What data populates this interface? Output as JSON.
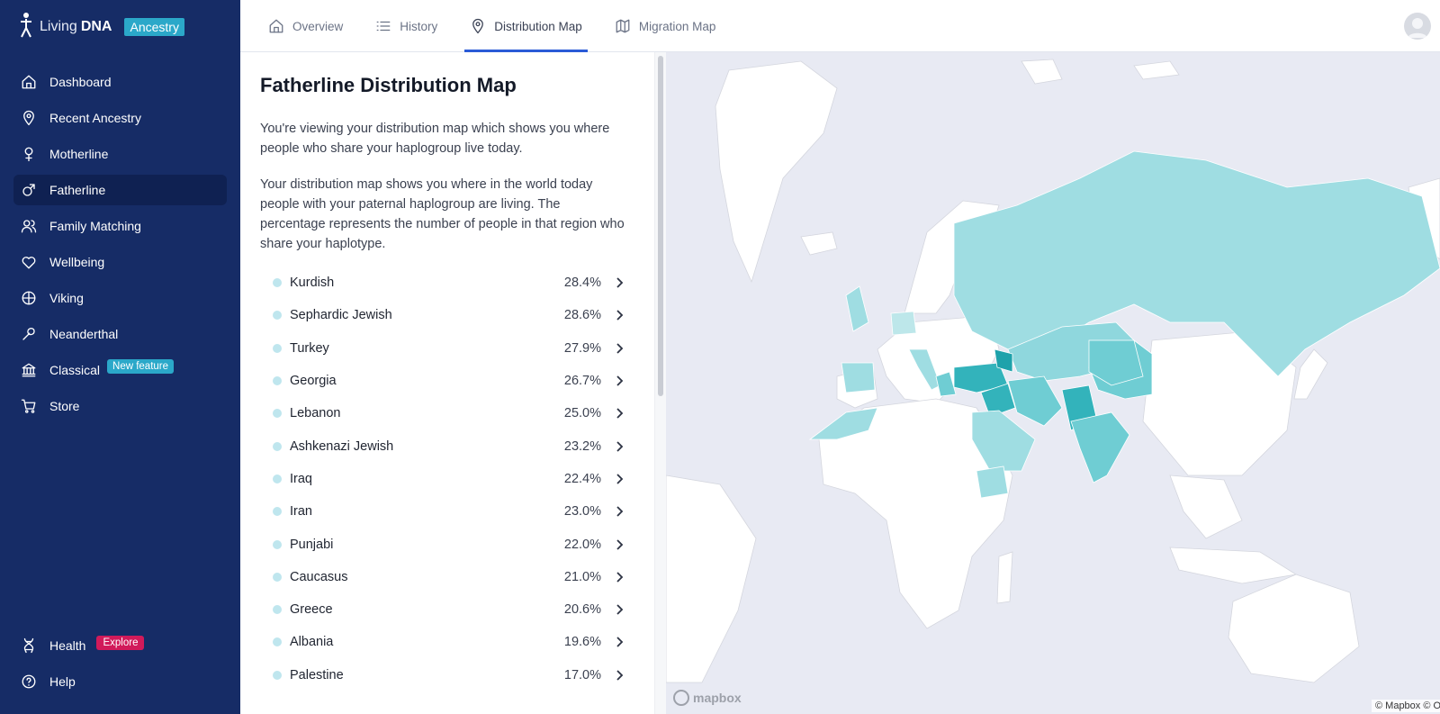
{
  "brand": {
    "name_light": "Living",
    "name_bold": "DNA",
    "product": "Ancestry"
  },
  "sidebar": {
    "items": [
      {
        "label": "Dashboard",
        "icon": "home-icon"
      },
      {
        "label": "Recent Ancestry",
        "icon": "location-pin-icon"
      },
      {
        "label": "Motherline",
        "icon": "female-symbol-icon"
      },
      {
        "label": "Fatherline",
        "icon": "male-symbol-icon",
        "active": true
      },
      {
        "label": "Family Matching",
        "icon": "people-icon"
      },
      {
        "label": "Wellbeing",
        "icon": "heart-icon"
      },
      {
        "label": "Viking",
        "icon": "viking-shield-icon"
      },
      {
        "label": "Neanderthal",
        "icon": "club-icon"
      },
      {
        "label": "Classical",
        "icon": "temple-icon",
        "badge": "New feature"
      },
      {
        "label": "Store",
        "icon": "cart-icon"
      }
    ],
    "bottom": [
      {
        "label": "Health",
        "icon": "dna-icon",
        "badge": "Explore"
      },
      {
        "label": "Help",
        "icon": "help-circle-icon"
      }
    ]
  },
  "tabs": [
    {
      "label": "Overview",
      "icon": "home-icon"
    },
    {
      "label": "History",
      "icon": "list-icon"
    },
    {
      "label": "Distribution Map",
      "icon": "location-pin-icon",
      "active": true
    },
    {
      "label": "Migration Map",
      "icon": "map-icon"
    }
  ],
  "panel": {
    "title": "Fatherline Distribution Map",
    "p1": "You're viewing your distribution map which shows you where people who share your haplogroup live today.",
    "p2": "Your distribution map shows you where in the world today people with your paternal haplogroup are living. The percentage represents the number of people in that region who share your haplotype."
  },
  "regions": [
    {
      "name": "Kurdish",
      "pct": "28.4%"
    },
    {
      "name": "Sephardic Jewish",
      "pct": "28.6%"
    },
    {
      "name": "Turkey",
      "pct": "27.9%"
    },
    {
      "name": "Georgia",
      "pct": "26.7%"
    },
    {
      "name": "Lebanon",
      "pct": "25.0%"
    },
    {
      "name": "Ashkenazi Jewish",
      "pct": "23.2%"
    },
    {
      "name": "Iraq",
      "pct": "22.4%"
    },
    {
      "name": "Iran",
      "pct": "23.0%"
    },
    {
      "name": "Punjabi",
      "pct": "22.0%"
    },
    {
      "name": "Caucasus",
      "pct": "21.0%"
    },
    {
      "name": "Greece",
      "pct": "20.6%"
    },
    {
      "name": "Albania",
      "pct": "19.6%"
    },
    {
      "name": "Palestine",
      "pct": "17.0%"
    }
  ],
  "map": {
    "mapbox_logo": "mapbox",
    "attribution": "© Mapbox © OpenStreetMap",
    "colors": {
      "water": "#e8eaf3",
      "land": "#ffffff",
      "light": "#9fdde2",
      "mid": "#6fcdd3",
      "dark": "#33b3bb",
      "darkest": "#1ea2ab"
    }
  },
  "colors": {
    "sidebar": "#162c66",
    "sidebar_active": "#0f2152",
    "accent": "#2ba8c9",
    "tab_underline": "#2a5bd7",
    "explore": "#d11a5a"
  }
}
